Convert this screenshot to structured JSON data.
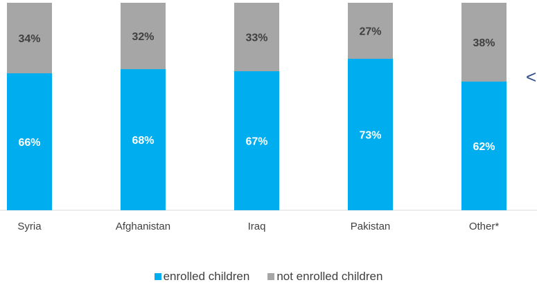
{
  "chart_data": {
    "type": "bar",
    "stacked": true,
    "categories": [
      "Syria",
      "Afghanistan",
      "Iraq",
      "Pakistan",
      "Other*"
    ],
    "series": [
      {
        "name": "enrolled children",
        "values": [
          66,
          68,
          67,
          73,
          62
        ],
        "labels": [
          "66%",
          "68%",
          "67%",
          "73%",
          "62%"
        ],
        "color": "#00aeef",
        "label_color": "#ffffff"
      },
      {
        "name": "not enrolled children",
        "values": [
          34,
          32,
          33,
          27,
          38
        ],
        "labels": [
          "34%",
          "32%",
          "33%",
          "27%",
          "38%"
        ],
        "color": "#a6a6a6",
        "label_color": "#404040"
      }
    ],
    "ylim": [
      0,
      100
    ],
    "grid": false,
    "legend_position": "bottom"
  },
  "side_glyph": "<"
}
